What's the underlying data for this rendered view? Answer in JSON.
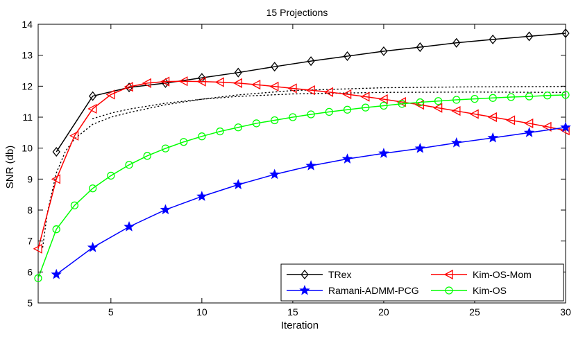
{
  "chart_data": {
    "type": "line",
    "title": "15 Projections",
    "xlabel": "Iteration",
    "ylabel": "SNR (db)",
    "xlim": [
      1,
      30
    ],
    "ylim": [
      5,
      14
    ],
    "xticks": [
      5,
      10,
      15,
      20,
      25,
      30
    ],
    "yticks": [
      5,
      6,
      7,
      8,
      9,
      10,
      11,
      12,
      13,
      14
    ],
    "grid": false,
    "legend_position": "bottom-right",
    "series": [
      {
        "name": "TRex",
        "color": "#000000",
        "marker": "diamond",
        "x": [
          2,
          4,
          6,
          8,
          10,
          12,
          14,
          16,
          18,
          20,
          22,
          24,
          26,
          28,
          30
        ],
        "y": [
          9.88,
          11.68,
          11.96,
          12.1,
          12.27,
          12.44,
          12.63,
          12.81,
          12.97,
          13.13,
          13.26,
          13.4,
          13.51,
          13.61,
          13.71
        ]
      },
      {
        "name": "Kim-OS-Mom",
        "color": "#ff0000",
        "marker": "triangle-left",
        "x": [
          1,
          2,
          3,
          4,
          5,
          6,
          7,
          8,
          9,
          10,
          11,
          12,
          13,
          14,
          15,
          16,
          17,
          18,
          19,
          20,
          21,
          22,
          23,
          24,
          25,
          26,
          27,
          28,
          29,
          30
        ],
        "y": [
          6.75,
          9.0,
          10.4,
          11.27,
          11.73,
          11.98,
          12.1,
          12.15,
          12.16,
          12.15,
          12.13,
          12.1,
          12.05,
          11.99,
          11.93,
          11.87,
          11.81,
          11.74,
          11.66,
          11.58,
          11.49,
          11.4,
          11.3,
          11.2,
          11.1,
          11.0,
          10.9,
          10.8,
          10.69,
          10.57
        ]
      },
      {
        "name": "Ramani-ADMM-PCG",
        "color": "#0000ff",
        "marker": "star",
        "x": [
          2,
          4,
          6,
          8,
          10,
          12,
          14,
          16,
          18,
          20,
          22,
          24,
          26,
          28,
          30
        ],
        "y": [
          5.92,
          6.79,
          7.46,
          8.01,
          8.44,
          8.82,
          9.15,
          9.43,
          9.65,
          9.83,
          9.99,
          10.17,
          10.33,
          10.5,
          10.67
        ]
      },
      {
        "name": "Kim-OS",
        "color": "#00ff00",
        "marker": "circle",
        "x": [
          1,
          2,
          3,
          4,
          5,
          6,
          7,
          8,
          9,
          10,
          11,
          12,
          13,
          14,
          15,
          16,
          17,
          18,
          19,
          20,
          21,
          22,
          23,
          24,
          25,
          26,
          27,
          28,
          29,
          30
        ],
        "y": [
          5.8,
          7.38,
          8.15,
          8.7,
          9.11,
          9.46,
          9.75,
          9.99,
          10.2,
          10.38,
          10.54,
          10.67,
          10.8,
          10.9,
          11.0,
          11.09,
          11.17,
          11.24,
          11.31,
          11.37,
          11.43,
          11.48,
          11.52,
          11.56,
          11.59,
          11.62,
          11.65,
          11.67,
          11.7,
          11.72
        ]
      },
      {
        "name": "",
        "color": "#000000",
        "style": "dotted",
        "x": [
          1.25,
          1.5,
          2,
          2.5,
          3,
          4,
          5,
          6,
          8,
          10,
          12,
          15,
          20,
          25,
          30
        ],
        "y": [
          6.8,
          7.9,
          9.2,
          9.9,
          10.3,
          10.77,
          11.0,
          11.15,
          11.4,
          11.58,
          11.72,
          11.86,
          11.95,
          11.98,
          11.99
        ]
      },
      {
        "name": "",
        "color": "#000000",
        "style": "dotted",
        "x": [
          4,
          5,
          6,
          8,
          10,
          12,
          15,
          20,
          25,
          30
        ],
        "y": [
          10.95,
          11.13,
          11.26,
          11.45,
          11.58,
          11.67,
          11.75,
          11.8,
          11.81,
          11.8
        ]
      }
    ]
  }
}
